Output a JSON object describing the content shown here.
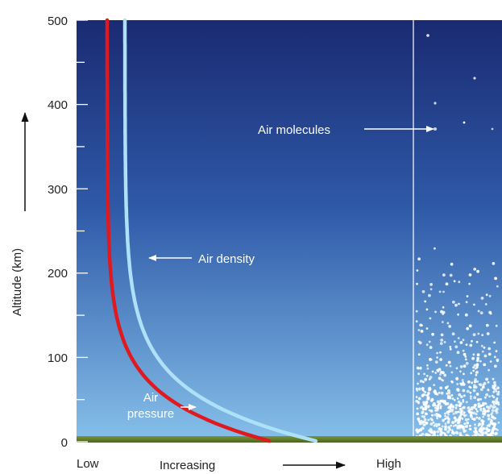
{
  "chart_data": {
    "type": "line",
    "ylabel": "Altitude (km)",
    "ylim": [
      0,
      500
    ],
    "y_ticks": [
      "0",
      "100",
      "200",
      "300",
      "400",
      "500"
    ],
    "x_labels": {
      "low": "Low",
      "middle": "Increasing",
      "high": "High"
    },
    "series": [
      {
        "name": "Air density",
        "color": "#aee0f7"
      },
      {
        "name": "Air pressure",
        "color": "#e0191f"
      }
    ],
    "annotations": {
      "air_density": "Air density",
      "air_pressure_line1": "Air",
      "air_pressure_line2": "pressure",
      "air_molecules": "Air molecules"
    },
    "colors": {
      "sky_top": "#1a2a72",
      "sky_bottom": "#7cb8e4",
      "ground": "#5e7a2a"
    }
  }
}
